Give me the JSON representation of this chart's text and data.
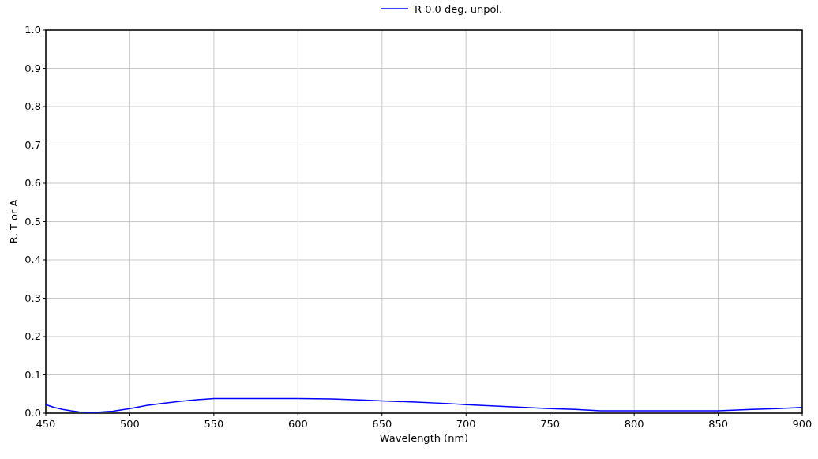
{
  "chart_data": {
    "type": "line",
    "xlabel": "Wavelength (nm)",
    "ylabel": "R, T or A",
    "x": [
      450,
      455,
      460,
      465,
      470,
      475,
      480,
      490,
      500,
      510,
      520,
      530,
      540,
      550,
      575,
      600,
      620,
      640,
      650,
      670,
      690,
      700,
      720,
      750,
      765,
      780,
      800,
      850,
      870,
      885,
      900
    ],
    "series": [
      {
        "name": "R 0.0 deg. unpol.",
        "color": "#0000ff",
        "values": [
          0.022,
          0.015,
          0.01,
          0.006,
          0.003,
          0.002,
          0.002,
          0.005,
          0.012,
          0.02,
          0.026,
          0.031,
          0.035,
          0.038,
          0.038,
          0.038,
          0.037,
          0.034,
          0.032,
          0.029,
          0.025,
          0.022,
          0.018,
          0.012,
          0.01,
          0.006,
          0.006,
          0.006,
          0.01,
          0.012,
          0.015
        ]
      }
    ],
    "xlim": [
      450,
      900
    ],
    "xticks": [
      450,
      500,
      550,
      600,
      650,
      700,
      750,
      800,
      850,
      900
    ],
    "ylim": [
      0,
      1
    ],
    "yticks": [
      {
        "value": 0,
        "label": "0.0"
      },
      0.1,
      0.2,
      0.3,
      0.4,
      0.5,
      0.6,
      0.7,
      0.8,
      0.9,
      {
        "value": 1,
        "label": "1.0"
      }
    ],
    "grid": true,
    "legend": "top"
  }
}
